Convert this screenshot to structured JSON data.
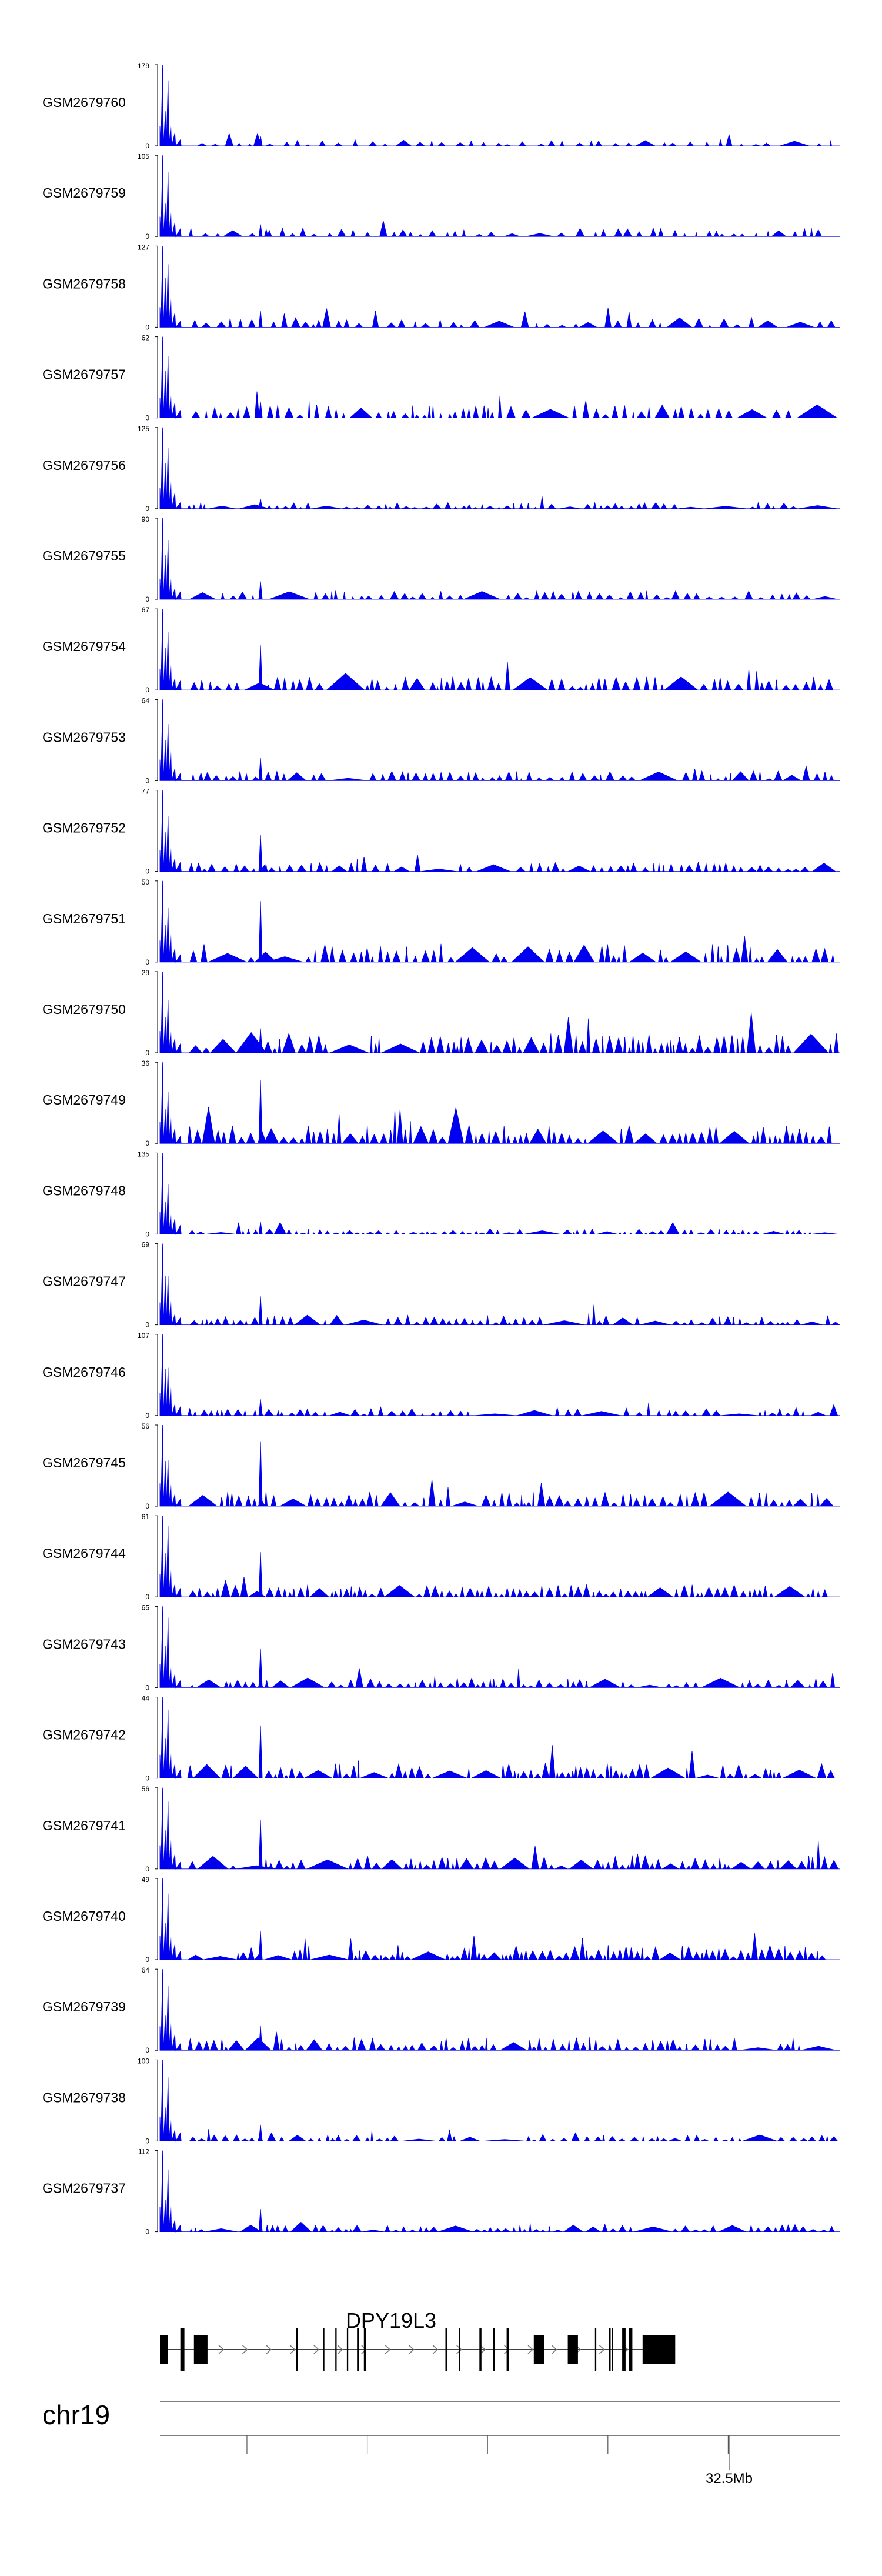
{
  "chart_data": {
    "type": "area",
    "tracks": [
      {
        "name": "GSM2679760",
        "ymax": "179",
        "ymin": "0",
        "seed": 1,
        "base": 0.1,
        "peak1": 1.0,
        "peak2": 0.12,
        "density": 0.5
      },
      {
        "name": "GSM2679759",
        "ymax": "105",
        "ymin": "0",
        "seed": 2,
        "base": 0.14,
        "peak1": 1.0,
        "peak2": 0.15,
        "density": 0.6
      },
      {
        "name": "GSM2679758",
        "ymax": "127",
        "ymin": "0",
        "seed": 3,
        "base": 0.16,
        "peak1": 1.0,
        "peak2": 0.2,
        "density": 0.6
      },
      {
        "name": "GSM2679757",
        "ymax": "62",
        "ymin": "0",
        "seed": 4,
        "base": 0.22,
        "peak1": 1.0,
        "peak2": 0.2,
        "density": 0.75
      },
      {
        "name": "GSM2679756",
        "ymax": "125",
        "ymin": "0",
        "seed": 5,
        "base": 0.1,
        "peak1": 1.0,
        "peak2": 0.12,
        "density": 0.8
      },
      {
        "name": "GSM2679755",
        "ymax": "90",
        "ymin": "0",
        "seed": 6,
        "base": 0.14,
        "peak1": 1.0,
        "peak2": 0.22,
        "density": 0.75
      },
      {
        "name": "GSM2679754",
        "ymax": "67",
        "ymin": "0",
        "seed": 7,
        "base": 0.22,
        "peak1": 1.0,
        "peak2": 0.55,
        "density": 0.8
      },
      {
        "name": "GSM2679753",
        "ymax": "64",
        "ymin": "0",
        "seed": 8,
        "base": 0.16,
        "peak1": 1.0,
        "peak2": 0.28,
        "density": 0.8
      },
      {
        "name": "GSM2679752",
        "ymax": "77",
        "ymin": "0",
        "seed": 9,
        "base": 0.15,
        "peak1": 1.0,
        "peak2": 0.45,
        "density": 0.75
      },
      {
        "name": "GSM2679751",
        "ymax": "50",
        "ymin": "0",
        "seed": 10,
        "base": 0.3,
        "peak1": 1.0,
        "peak2": 0.75,
        "density": 0.8
      },
      {
        "name": "GSM2679750",
        "ymax": "29",
        "ymin": "0",
        "seed": 11,
        "base": 0.32,
        "peak1": 1.0,
        "peak2": 0.3,
        "density": 0.9
      },
      {
        "name": "GSM2679749",
        "ymax": "36",
        "ymin": "0",
        "seed": 12,
        "base": 0.3,
        "peak1": 1.0,
        "peak2": 0.78,
        "density": 0.9
      },
      {
        "name": "GSM2679748",
        "ymax": "135",
        "ymin": "0",
        "seed": 13,
        "base": 0.09,
        "peak1": 1.0,
        "peak2": 0.15,
        "density": 0.85
      },
      {
        "name": "GSM2679747",
        "ymax": "69",
        "ymin": "0",
        "seed": 14,
        "base": 0.16,
        "peak1": 1.0,
        "peak2": 0.35,
        "density": 0.85
      },
      {
        "name": "GSM2679746",
        "ymax": "107",
        "ymin": "0",
        "seed": 15,
        "base": 0.12,
        "peak1": 1.0,
        "peak2": 0.2,
        "density": 0.7
      },
      {
        "name": "GSM2679745",
        "ymax": "56",
        "ymin": "0",
        "seed": 16,
        "base": 0.24,
        "peak1": 1.0,
        "peak2": 0.8,
        "density": 0.85
      },
      {
        "name": "GSM2679744",
        "ymax": "61",
        "ymin": "0",
        "seed": 17,
        "base": 0.2,
        "peak1": 1.0,
        "peak2": 0.55,
        "density": 0.9
      },
      {
        "name": "GSM2679743",
        "ymax": "65",
        "ymin": "0",
        "seed": 18,
        "base": 0.16,
        "peak1": 1.0,
        "peak2": 0.48,
        "density": 0.85
      },
      {
        "name": "GSM2679742",
        "ymax": "44",
        "ymin": "0",
        "seed": 19,
        "base": 0.26,
        "peak1": 1.0,
        "peak2": 0.65,
        "density": 0.95
      },
      {
        "name": "GSM2679741",
        "ymax": "56",
        "ymin": "0",
        "seed": 20,
        "base": 0.22,
        "peak1": 1.0,
        "peak2": 0.6,
        "density": 0.9
      },
      {
        "name": "GSM2679740",
        "ymax": "49",
        "ymin": "0",
        "seed": 21,
        "base": 0.24,
        "peak1": 1.0,
        "peak2": 0.35,
        "density": 0.95
      },
      {
        "name": "GSM2679739",
        "ymax": "64",
        "ymin": "0",
        "seed": 22,
        "base": 0.22,
        "peak1": 1.0,
        "peak2": 0.3,
        "density": 0.85
      },
      {
        "name": "GSM2679738",
        "ymax": "100",
        "ymin": "0",
        "seed": 23,
        "base": 0.1,
        "peak1": 1.0,
        "peak2": 0.2,
        "density": 0.8
      },
      {
        "name": "GSM2679737",
        "ymax": "112",
        "ymin": "0",
        "seed": 24,
        "base": 0.12,
        "peak1": 1.0,
        "peak2": 0.28,
        "density": 0.85
      }
    ],
    "gene": {
      "name": "DPY19L3",
      "exons": [
        [
          0.0,
          0.012
        ],
        [
          0.03,
          0.036
        ],
        [
          0.05,
          0.07
        ],
        [
          0.2,
          0.203
        ],
        [
          0.24,
          0.242
        ],
        [
          0.258,
          0.26
        ],
        [
          0.275,
          0.277
        ],
        [
          0.29,
          0.293
        ],
        [
          0.3,
          0.303
        ],
        [
          0.42,
          0.423
        ],
        [
          0.44,
          0.442
        ],
        [
          0.47,
          0.473
        ],
        [
          0.49,
          0.493
        ],
        [
          0.51,
          0.513
        ],
        [
          0.55,
          0.565
        ],
        [
          0.6,
          0.615
        ],
        [
          0.64,
          0.642
        ],
        [
          0.66,
          0.663
        ],
        [
          0.665,
          0.667
        ],
        [
          0.68,
          0.685
        ],
        [
          0.69,
          0.695
        ],
        [
          0.71,
          0.758
        ]
      ]
    },
    "chromosome": "chr19",
    "axis": {
      "tick_label": "32.5Mb",
      "minor_tick_fracs": [
        0.128,
        0.305,
        0.482,
        0.659,
        0.836
      ]
    },
    "colors": {
      "signal": "#0000ee",
      "text": "#000000",
      "axis": "#555555"
    }
  }
}
